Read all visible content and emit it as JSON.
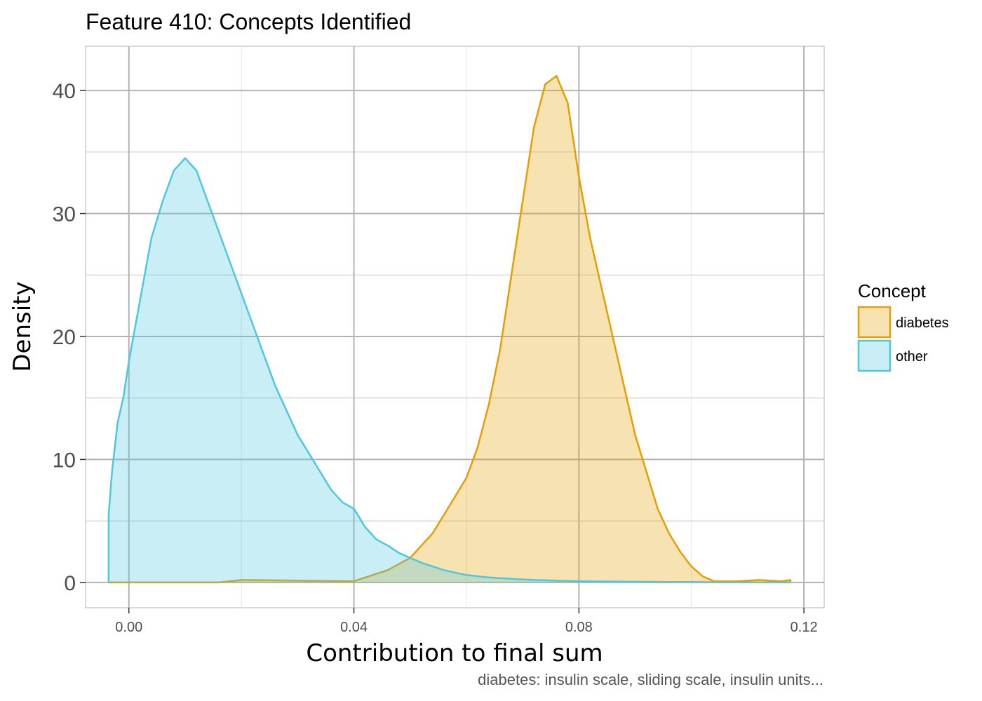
{
  "chart_data": {
    "type": "area",
    "title": "Feature 410: Concepts Identified",
    "xlabel": "Contribution to final sum",
    "ylabel": "Density",
    "caption": "diabetes: insulin scale, sliding scale, insulin units...",
    "xlim": [
      -0.0077,
      0.1236
    ],
    "ylim": [
      -2.06,
      43.6
    ],
    "x_ticks": [
      0.0,
      0.04,
      0.08,
      0.12
    ],
    "x_tick_labels": [
      "0.00",
      "0.04",
      "0.08",
      "0.12"
    ],
    "y_ticks": [
      0,
      10,
      20,
      30,
      40
    ],
    "y_tick_labels": [
      "0",
      "10",
      "20",
      "30",
      "40"
    ],
    "grid": true,
    "legend": {
      "title": "Concept",
      "position": "right"
    },
    "series": [
      {
        "name": "diabetes",
        "stroke": "#E69F00",
        "fill": "#E69F00",
        "fill_opacity": 0.3,
        "x": [
          -0.0036,
          0.016,
          0.02,
          0.04,
          0.046,
          0.05,
          0.054,
          0.058,
          0.06,
          0.062,
          0.064,
          0.066,
          0.068,
          0.07,
          0.072,
          0.074,
          0.076,
          0.078,
          0.08,
          0.082,
          0.084,
          0.086,
          0.088,
          0.09,
          0.092,
          0.094,
          0.096,
          0.098,
          0.1,
          0.102,
          0.104,
          0.108,
          0.112,
          0.116,
          0.1176
        ],
        "y": [
          0,
          0,
          0.2,
          0.1,
          1.0,
          2.0,
          4.0,
          7.0,
          8.5,
          11.0,
          14.5,
          19.0,
          25.0,
          31.0,
          37.0,
          40.5,
          41.2,
          39.0,
          33.0,
          28.0,
          24.0,
          20.0,
          16.0,
          12.0,
          9.0,
          6.0,
          4.0,
          2.5,
          1.3,
          0.5,
          0.1,
          0.1,
          0.2,
          0.1,
          0.2
        ]
      },
      {
        "name": "other",
        "stroke": "#4DC8E0",
        "fill": "#4DC8E0",
        "fill_opacity": 0.3,
        "x": [
          -0.0036,
          -0.003,
          -0.002,
          -0.001,
          0.0,
          0.002,
          0.004,
          0.006,
          0.008,
          0.01,
          0.012,
          0.014,
          0.016,
          0.018,
          0.02,
          0.022,
          0.024,
          0.026,
          0.028,
          0.03,
          0.032,
          0.034,
          0.036,
          0.038,
          0.04,
          0.042,
          0.044,
          0.046,
          0.048,
          0.05,
          0.052,
          0.054,
          0.056,
          0.058,
          0.06,
          0.064,
          0.068,
          0.072,
          0.076,
          0.08,
          0.084,
          0.088,
          0.092,
          0.096,
          0.1,
          0.104,
          0.108,
          0.112,
          0.116,
          0.1176
        ],
        "y": [
          5.5,
          9.0,
          13.0,
          15.0,
          18.0,
          23.0,
          28.0,
          31.0,
          33.5,
          34.5,
          33.5,
          31.0,
          28.5,
          26.0,
          23.5,
          21.0,
          18.5,
          16.0,
          14.0,
          12.0,
          10.5,
          9.0,
          7.5,
          6.5,
          6.0,
          4.5,
          3.5,
          3.0,
          2.4,
          2.0,
          1.6,
          1.3,
          1.0,
          0.8,
          0.6,
          0.4,
          0.3,
          0.2,
          0.15,
          0.1,
          0.08,
          0.06,
          0.05,
          0.04,
          0.03,
          0.02,
          0.02,
          0.01,
          0.01,
          0.0
        ]
      }
    ]
  }
}
